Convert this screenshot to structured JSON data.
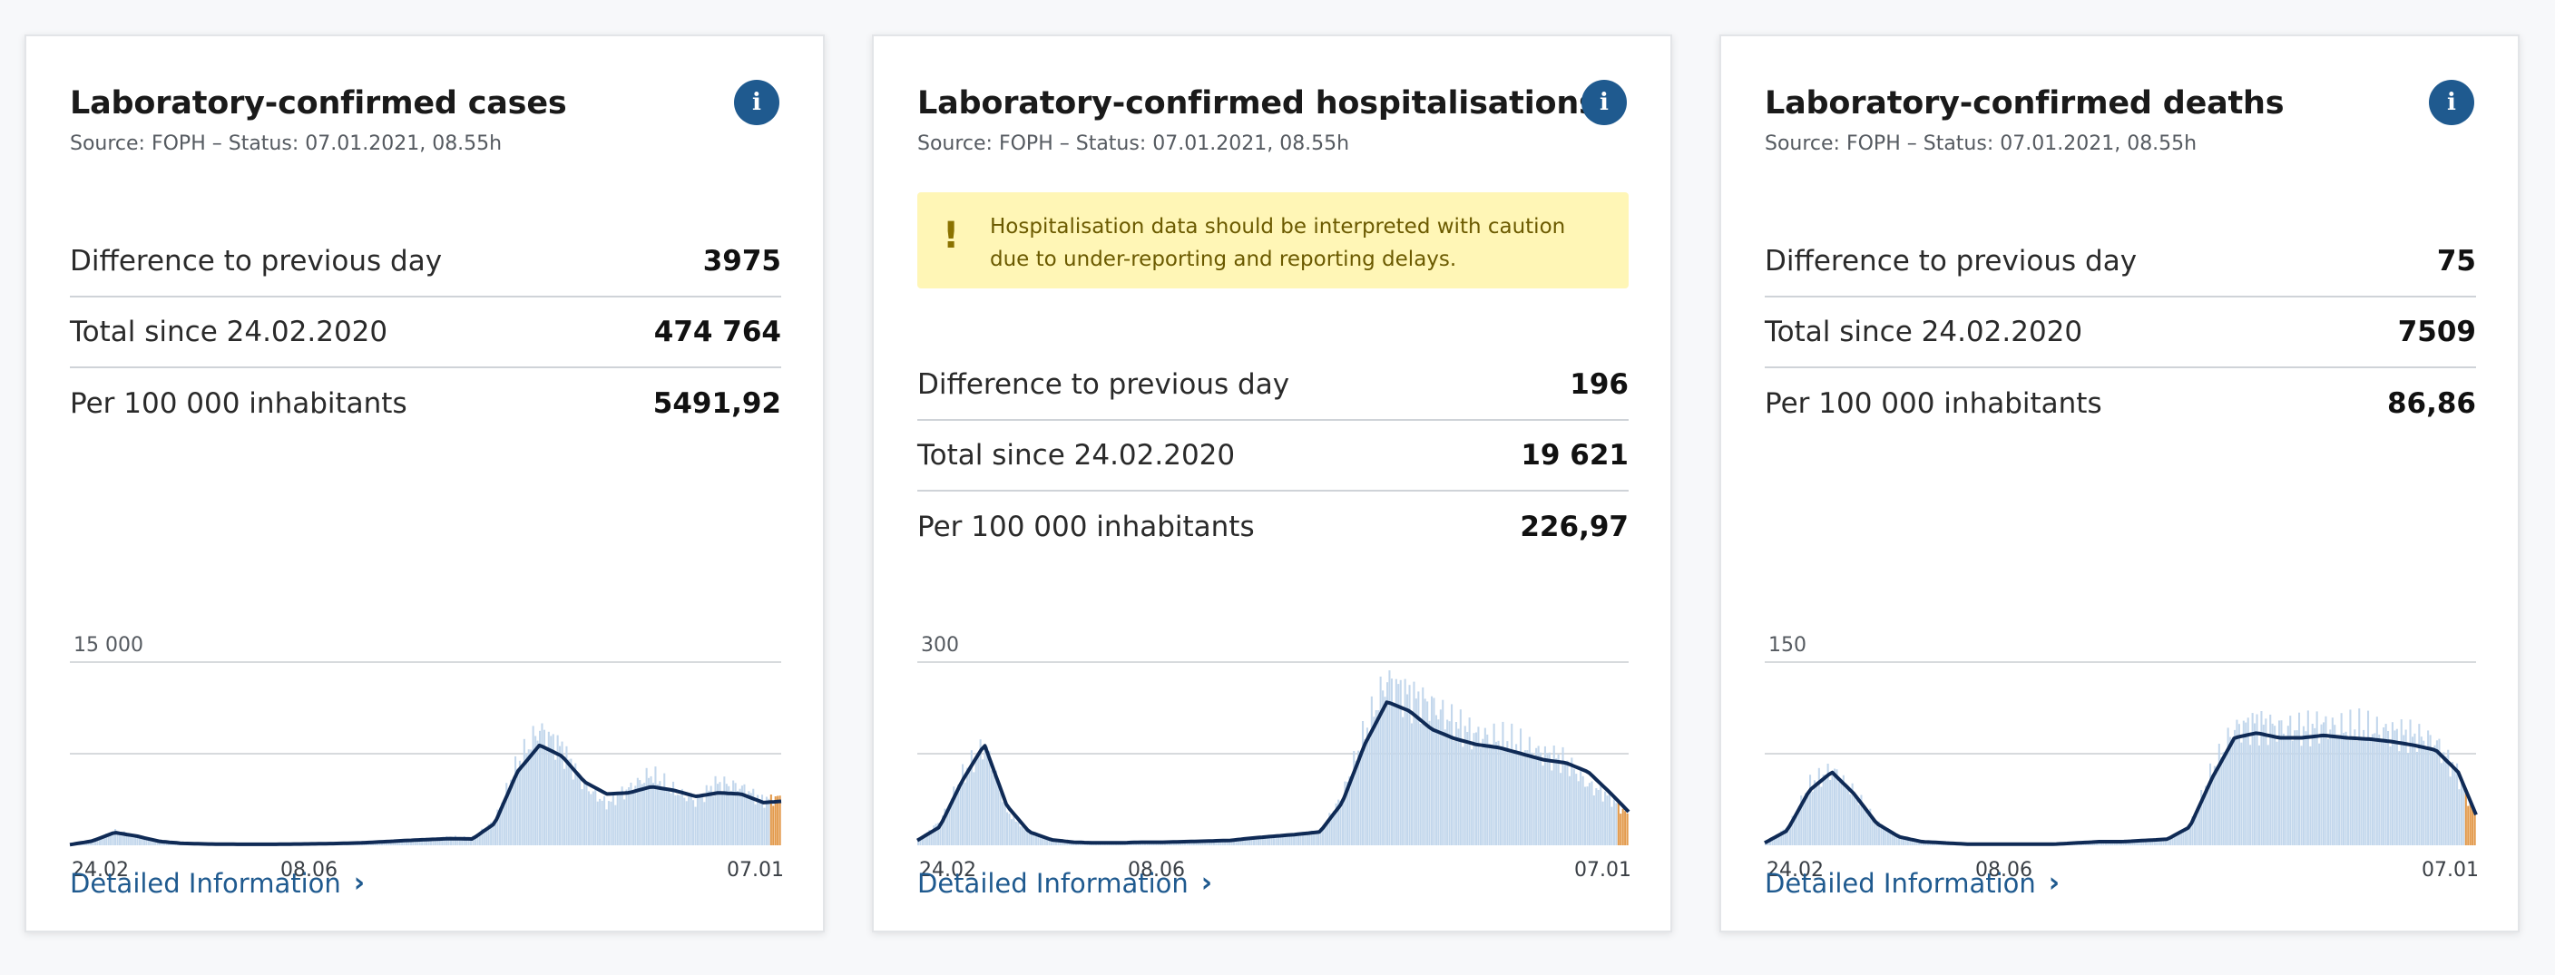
{
  "cards": [
    {
      "title": "Laboratory-confirmed cases",
      "source": "Source: FOPH – Status: 07.01.2021, 08.55h",
      "stats": [
        {
          "label": "Difference to previous day",
          "value": "3975"
        },
        {
          "label": "Total since 24.02.2020",
          "value": "474 764"
        },
        {
          "label": "Per 100 000 inhabitants",
          "value": "5491,92"
        }
      ],
      "link_label": "Detailed Information"
    },
    {
      "title": "Laboratory-confirmed hospitalisations",
      "source": "Source: FOPH – Status: 07.01.2021, 08.55h",
      "warning": "Hospitalisation data should be interpreted with caution due to under-reporting and reporting delays.",
      "stats": [
        {
          "label": "Difference to previous day",
          "value": "196"
        },
        {
          "label": "Total since 24.02.2020",
          "value": "19 621"
        },
        {
          "label": "Per 100 000 inhabitants",
          "value": "226,97"
        }
      ],
      "link_label": "Detailed Information"
    },
    {
      "title": "Laboratory-confirmed deaths",
      "source": "Source: FOPH – Status: 07.01.2021, 08.55h",
      "stats": [
        {
          "label": "Difference to previous day",
          "value": "75"
        },
        {
          "label": "Total since 24.02.2020",
          "value": "7509"
        },
        {
          "label": "Per 100 000 inhabitants",
          "value": "86,86"
        }
      ],
      "link_label": "Detailed Information"
    }
  ],
  "colors": {
    "accent": "#1f5a8f",
    "bars": "#c3d7ec",
    "line": "#0f2a55",
    "recent_bars": "#e39a4c",
    "warning_bg": "#fff6b6",
    "gridline": "#d7dadd"
  },
  "chart_data": [
    {
      "type": "bar",
      "x": [
        "24.02",
        "08.06",
        "07.01"
      ],
      "ymax_label": "15 000",
      "ylim": [
        0,
        15000
      ],
      "series": [
        {
          "role": "daily",
          "x": [
            0,
            10,
            20,
            30,
            40,
            50,
            60,
            70,
            80,
            90,
            100,
            110,
            120,
            130,
            140,
            150,
            160,
            170,
            180,
            190,
            200,
            210,
            220,
            230,
            240,
            250,
            260,
            270,
            280,
            290,
            300,
            310,
            318
          ],
          "y": [
            50,
            400,
            1150,
            700,
            300,
            150,
            100,
            90,
            80,
            80,
            100,
            120,
            150,
            200,
            300,
            400,
            500,
            700,
            600,
            2000,
            6500,
            9500,
            8000,
            5000,
            3400,
            4600,
            5800,
            4500,
            3600,
            5100,
            4800,
            3700,
            3900
          ]
        },
        {
          "role": "7-day average",
          "x": [
            0,
            10,
            20,
            30,
            40,
            50,
            60,
            70,
            80,
            90,
            100,
            110,
            120,
            130,
            140,
            150,
            160,
            170,
            180,
            190,
            200,
            210,
            220,
            230,
            240,
            250,
            260,
            270,
            280,
            290,
            300,
            310,
            318
          ],
          "y": [
            50,
            350,
            1050,
            750,
            320,
            160,
            110,
            90,
            80,
            80,
            100,
            120,
            150,
            200,
            290,
            390,
            470,
            550,
            520,
            1800,
            6000,
            8200,
            7300,
            5200,
            4200,
            4300,
            4800,
            4500,
            4000,
            4300,
            4200,
            3500,
            3600
          ]
        }
      ]
    },
    {
      "type": "bar",
      "x": [
        "24.02",
        "08.06",
        "07.01"
      ],
      "ymax_label": "300",
      "ylim": [
        0,
        300
      ],
      "series": [
        {
          "role": "daily",
          "x": [
            0,
            10,
            20,
            30,
            40,
            50,
            60,
            70,
            80,
            90,
            100,
            110,
            120,
            130,
            140,
            150,
            160,
            170,
            180,
            190,
            200,
            210,
            220,
            230,
            240,
            250,
            260,
            270,
            280,
            290,
            300,
            310,
            318
          ],
          "y": [
            8,
            40,
            115,
            165,
            55,
            20,
            8,
            5,
            4,
            4,
            5,
            5,
            6,
            7,
            8,
            12,
            15,
            18,
            22,
            80,
            180,
            270,
            245,
            230,
            200,
            180,
            175,
            165,
            150,
            140,
            100,
            80,
            50
          ]
        },
        {
          "role": "7-day average",
          "x": [
            0,
            10,
            20,
            30,
            40,
            50,
            60,
            70,
            80,
            90,
            100,
            110,
            120,
            130,
            140,
            150,
            160,
            170,
            180,
            190,
            200,
            210,
            220,
            230,
            240,
            250,
            260,
            270,
            280,
            290,
            300,
            310,
            318
          ],
          "y": [
            8,
            30,
            105,
            165,
            65,
            22,
            9,
            5,
            4,
            4,
            5,
            5,
            6,
            7,
            8,
            12,
            15,
            18,
            22,
            70,
            165,
            235,
            220,
            190,
            175,
            165,
            160,
            150,
            140,
            135,
            120,
            85,
            55
          ]
        }
      ]
    },
    {
      "type": "bar",
      "x": [
        "24.02",
        "08.06",
        "07.01"
      ],
      "ymax_label": "150",
      "ylim": [
        0,
        150
      ],
      "series": [
        {
          "role": "daily",
          "x": [
            0,
            10,
            20,
            30,
            40,
            50,
            60,
            70,
            80,
            90,
            100,
            110,
            120,
            130,
            140,
            150,
            160,
            170,
            180,
            190,
            200,
            210,
            220,
            230,
            240,
            250,
            260,
            270,
            280,
            290,
            300,
            310,
            318
          ],
          "y": [
            2,
            15,
            50,
            62,
            42,
            18,
            7,
            3,
            2,
            1,
            1,
            1,
            1,
            1,
            2,
            3,
            3,
            4,
            5,
            15,
            60,
            95,
            100,
            96,
            95,
            98,
            95,
            95,
            93,
            90,
            85,
            60,
            25
          ]
        },
        {
          "role": "7-day average",
          "x": [
            0,
            10,
            20,
            30,
            40,
            50,
            60,
            70,
            80,
            90,
            100,
            110,
            120,
            130,
            140,
            150,
            160,
            170,
            180,
            190,
            200,
            210,
            220,
            230,
            240,
            250,
            260,
            270,
            280,
            290,
            300,
            310,
            318
          ],
          "y": [
            2,
            12,
            45,
            60,
            42,
            18,
            7,
            3,
            2,
            1,
            1,
            1,
            1,
            1,
            2,
            3,
            3,
            4,
            5,
            15,
            55,
            88,
            92,
            88,
            88,
            90,
            88,
            87,
            85,
            82,
            78,
            60,
            25
          ]
        }
      ]
    }
  ]
}
